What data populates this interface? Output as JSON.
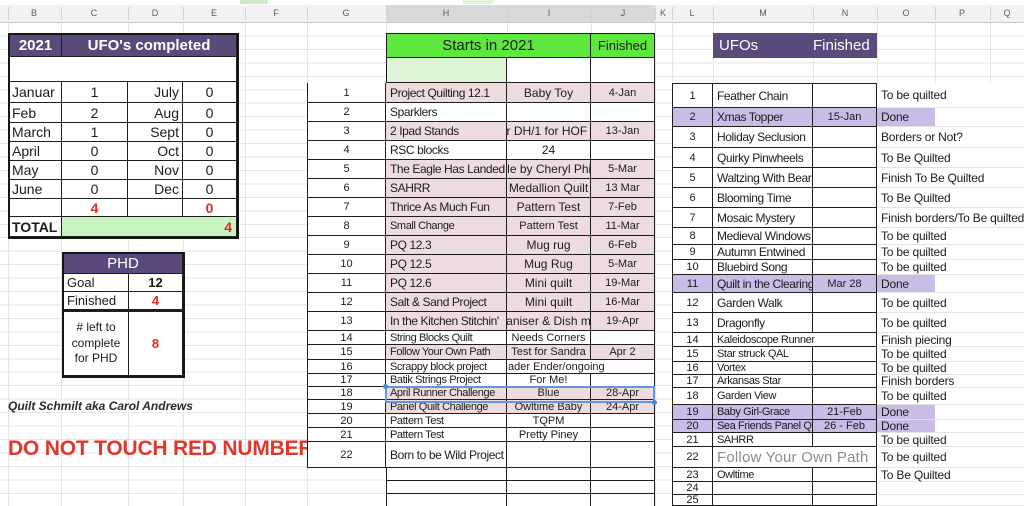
{
  "palette": {
    "header_purple": "#5a4a7c",
    "banner_green": "#5ee73c",
    "light_green": "#ddf5d6",
    "total_green": "#c7f5c2",
    "row_pink": "#eedbdf",
    "row_lavender": "#c9bce7",
    "red": "#e02b20"
  },
  "column_headers": [
    "B",
    "C",
    "D",
    "E",
    "F",
    "G",
    "H",
    "I",
    "J",
    "K",
    "L",
    "M",
    "N",
    "O",
    "P",
    "Q"
  ],
  "left_table": {
    "year": "2021",
    "title": "UFO's completed",
    "rows": [
      {
        "m1": "Januar",
        "v1": "1",
        "m2": "July",
        "v2": "0"
      },
      {
        "m1": "Feb",
        "v1": "2",
        "m2": "Aug",
        "v2": "0"
      },
      {
        "m1": "March",
        "v1": "1",
        "m2": "Sept",
        "v2": "0"
      },
      {
        "m1": "April",
        "v1": "0",
        "m2": "Oct",
        "v2": "0"
      },
      {
        "m1": "May",
        "v1": "0",
        "m2": "Nov",
        "v2": "0"
      },
      {
        "m1": "June",
        "v1": "0",
        "m2": "Dec",
        "v2": "0"
      }
    ],
    "subtotal_left": "4",
    "subtotal_right": "0",
    "total_label": "TOTAL",
    "total_value": "4"
  },
  "phd": {
    "title": "PHD",
    "rows": [
      {
        "label": "Goal",
        "value": "12",
        "red": false
      },
      {
        "label": "Finished",
        "value": "4",
        "red": true
      },
      {
        "label": "# left to complete for PHD",
        "value": "8",
        "red": true
      }
    ]
  },
  "notes": {
    "signature": "Quilt Schmilt aka Carol Andrews",
    "warning": "DO NOT TOUCH RED NUMBERS"
  },
  "starts_table": {
    "title": "Starts in 2021",
    "finished_label": "Finished",
    "rows": [
      {
        "n": "1",
        "name": "Project Quilting 12.1",
        "desc": "Baby Toy",
        "date": "4-Jan",
        "pink": true
      },
      {
        "n": "2",
        "name": "Sparklers",
        "desc": "",
        "date": "",
        "pink": false
      },
      {
        "n": "3",
        "name": "2 Ipad Stands",
        "desc": "or DH/1 for HOF h",
        "date": "13-Jan",
        "pink": true
      },
      {
        "n": "4",
        "name": "RSC blocks",
        "desc": "24",
        "date": "",
        "pink": false
      },
      {
        "n": "5",
        "name": "The Eagle Has Landed",
        "desc": "gle by Cheryl Phill",
        "date": "5-Mar",
        "pink": true
      },
      {
        "n": "6",
        "name": "SAHRR",
        "desc": "Medallion Quilt",
        "date": "13 Mar",
        "pink": true
      },
      {
        "n": "7",
        "name": "Thrice As Much Fun",
        "desc": "Pattern Test",
        "date": "7-Feb",
        "pink": true
      },
      {
        "n": "8",
        "name": "Small Change",
        "desc": "Pattern Test",
        "date": "11-Mar",
        "pink": true,
        "small": true
      },
      {
        "n": "9",
        "name": "PQ 12.3",
        "desc": "Mug rug",
        "date": "6-Feb",
        "pink": true
      },
      {
        "n": "10",
        "name": "PQ 12.5",
        "desc": "Mug Rug",
        "date": "5-Mar",
        "pink": true
      },
      {
        "n": "11",
        "name": "PQ 12.6",
        "desc": "Mini quilt",
        "date": "19-Mar",
        "pink": true
      },
      {
        "n": "12",
        "name": "Salt & Sand Project",
        "desc": "Mini quilt",
        "date": "16-Mar",
        "pink": true
      },
      {
        "n": "13",
        "name": "In the Kitchen Stitchin'",
        "desc": "ganiser & Dish ma",
        "date": "19-Apr",
        "pink": true
      },
      {
        "n": "14",
        "name": "String Blocks Quilt",
        "desc": "Needs Corners",
        "date": "",
        "pink": false
      },
      {
        "n": "15",
        "name": "Follow Your Own Path",
        "desc": "Test for Sandra",
        "date": "Apr 2",
        "pink": true
      },
      {
        "n": "16",
        "name": "Scrappy block project",
        "desc": "ader Ender/ongoing",
        "date": "",
        "pink": false,
        "overflow": true
      },
      {
        "n": "17",
        "name": "Batik Strings Project",
        "desc": "For Me!",
        "date": "",
        "pink": false
      },
      {
        "n": "18",
        "name": "April Runner Challenge",
        "desc": "Blue",
        "date": "28-Apr",
        "pink": true,
        "selected": true
      },
      {
        "n": "19",
        "name": "Panel Quilt Challenge",
        "desc": "Owltime Baby",
        "date": "24-Apr",
        "pink": true
      },
      {
        "n": "20",
        "name": "Pattern Test",
        "desc": "TQPM",
        "date": "",
        "pink": false
      },
      {
        "n": "21",
        "name": "Pattern Test",
        "desc": "Pretty Piney",
        "date": "",
        "pink": false
      },
      {
        "n": "22",
        "name": "Born to be Wild Project",
        "desc": "",
        "date": "",
        "pink": false
      },
      {
        "n": "",
        "name": "",
        "desc": "",
        "date": "",
        "pink": false
      },
      {
        "n": "",
        "name": "",
        "desc": "",
        "date": "",
        "pink": false
      },
      {
        "n": "",
        "name": "",
        "desc": "",
        "date": "",
        "pink": false
      }
    ]
  },
  "ufo_table": {
    "title": "UFOs",
    "finished_label": "Finished",
    "rows": [
      {
        "n": "1",
        "name": "Feather Chain",
        "date": "",
        "status": "To be quilted",
        "done": false
      },
      {
        "n": "2",
        "name": "Xmas Topper",
        "date": "15-Jan",
        "status": "Done",
        "done": true
      },
      {
        "n": "3",
        "name": "Holiday Seclusion",
        "date": "",
        "status": "Borders or Not?",
        "done": false
      },
      {
        "n": "4",
        "name": "Quirky Pinwheels",
        "date": "",
        "status": "To Be Quilted",
        "done": false
      },
      {
        "n": "5",
        "name": "Waltzing With Bears",
        "date": "",
        "status": "Finish To Be Quilted",
        "done": false
      },
      {
        "n": "6",
        "name": "Blooming Time",
        "date": "",
        "status": "To Be Quilted",
        "done": false
      },
      {
        "n": "7",
        "name": "Mosaic Mystery",
        "date": "",
        "status": "Finish borders/To Be quilted",
        "done": false
      },
      {
        "n": "8",
        "name": "Medieval Windows",
        "date": "",
        "status": "To be quilted",
        "done": false
      },
      {
        "n": "9",
        "name": "Autumn Entwined",
        "date": "",
        "status": "To be quilted",
        "done": false
      },
      {
        "n": "10",
        "name": "Bluebird Song",
        "date": "",
        "status": "To be quilted",
        "done": false
      },
      {
        "n": "11",
        "name": "Quilt in the Clearing",
        "date": "Mar 28",
        "status": "Done",
        "done": true
      },
      {
        "n": "12",
        "name": "Garden Walk",
        "date": "",
        "status": "To be quilted",
        "done": false
      },
      {
        "n": "13",
        "name": "Dragonfly",
        "date": "",
        "status": "To be quilted",
        "done": false
      },
      {
        "n": "14",
        "name": "Kaleidoscope Runner",
        "date": "",
        "status": "Finish piecing",
        "done": false,
        "overflow": true
      },
      {
        "n": "15",
        "name": "Star struck QAL",
        "date": "",
        "status": "To be quilted",
        "done": false
      },
      {
        "n": "16",
        "name": "Vortex",
        "date": "",
        "status": "To be quilted",
        "done": false
      },
      {
        "n": "17",
        "name": "Arkansas Star",
        "date": "",
        "status": "Finish borders",
        "done": false
      },
      {
        "n": "18",
        "name": "Garden View",
        "date": "",
        "status": "To be quilted",
        "done": false
      },
      {
        "n": "19",
        "name": "Baby Girl-Grace",
        "date": "21-Feb",
        "status": "Done",
        "done": true
      },
      {
        "n": "20",
        "name": "Sea Friends Panel Qu",
        "date": "26 - Feb",
        "status": "Done",
        "done": true
      },
      {
        "n": "21",
        "name": "SAHRR",
        "date": "",
        "status": "To be quilted",
        "done": false
      },
      {
        "n": "22",
        "name": "Follow Your Own Path",
        "date": "",
        "status": "To be quilted",
        "done": false,
        "ghost": true,
        "overflow": true
      },
      {
        "n": "23",
        "name": "Owltime",
        "date": "",
        "status": "To Be Quilted",
        "done": false,
        "small": true
      },
      {
        "n": "24",
        "name": "",
        "date": "",
        "status": "",
        "done": false
      },
      {
        "n": "25",
        "name": "",
        "date": "",
        "status": "",
        "done": false
      }
    ]
  }
}
